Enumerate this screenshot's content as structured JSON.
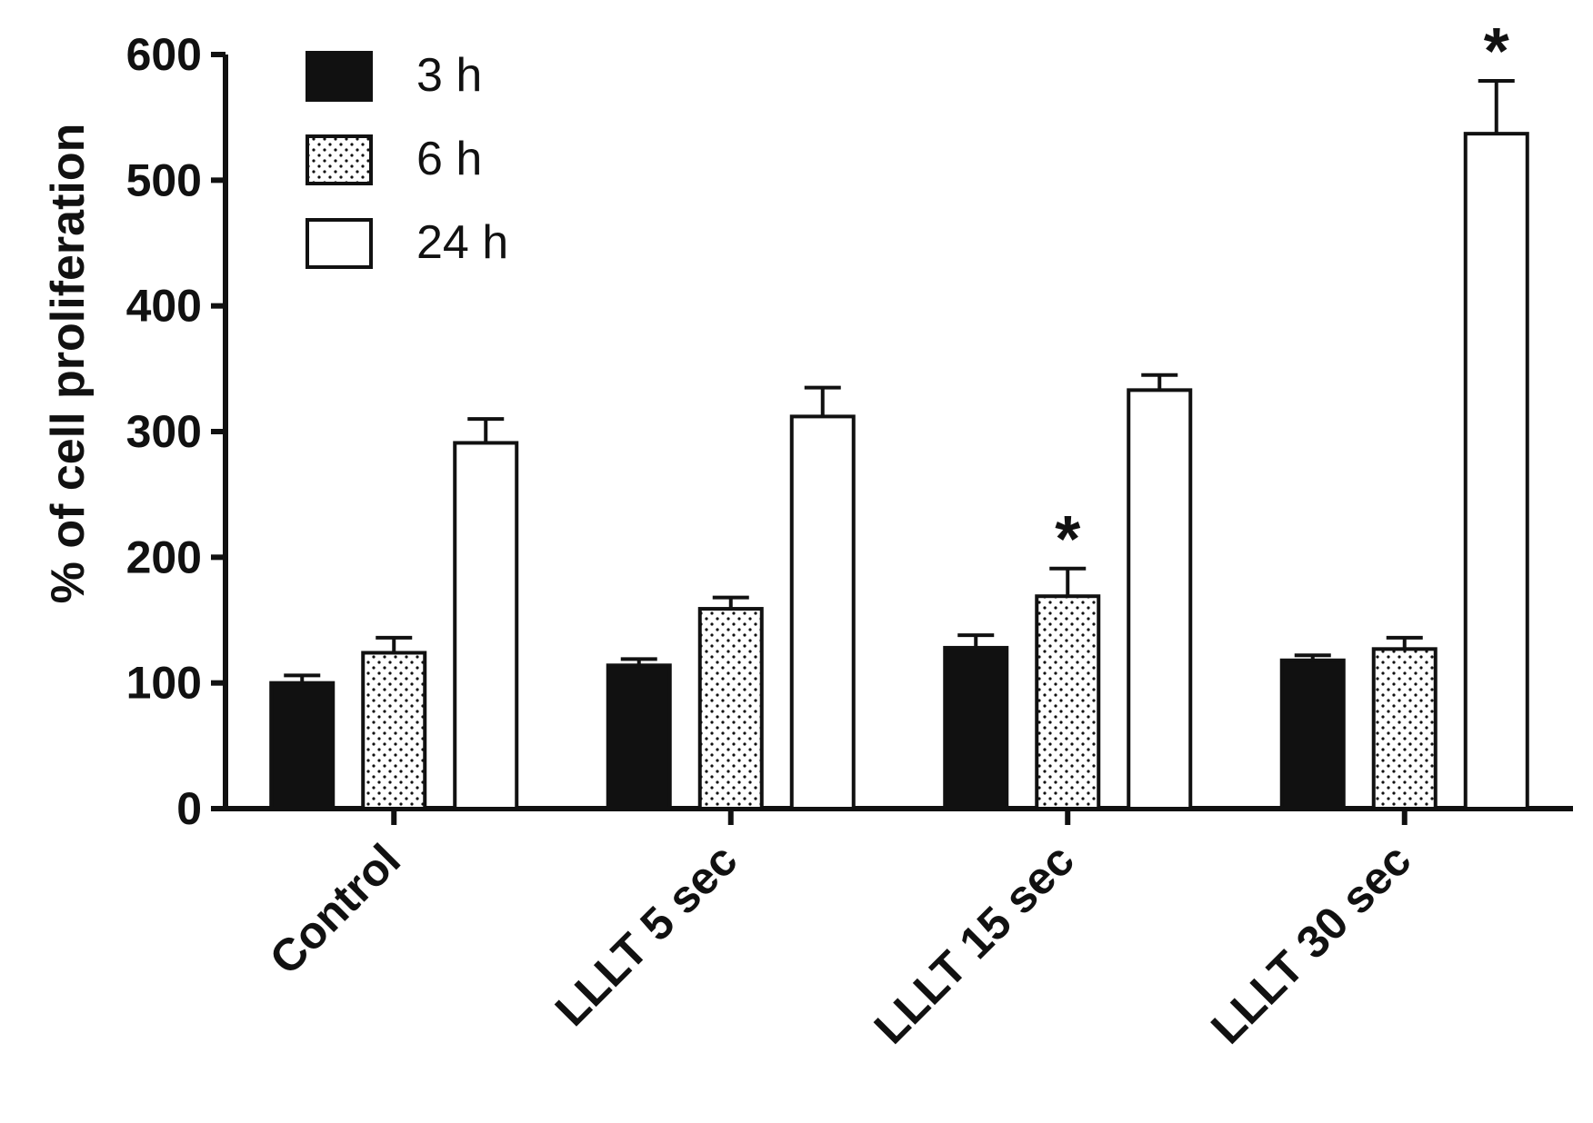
{
  "chart_data": {
    "type": "bar",
    "ylabel": "% of cell proliferation",
    "xlabel": "",
    "ylim": [
      0,
      600
    ],
    "yticks": [
      0,
      100,
      200,
      300,
      400,
      500,
      600
    ],
    "categories": [
      "Control",
      "LLLT 5 sec",
      "LLLT 15 sec",
      "LLLT 30 sec"
    ],
    "series": [
      {
        "name": "3 h",
        "fill": "solid",
        "values": [
          100,
          114,
          128,
          118
        ],
        "errors": [
          6,
          5,
          10,
          4
        ],
        "significant": [
          false,
          false,
          false,
          false
        ]
      },
      {
        "name": "6 h",
        "fill": "dotted",
        "values": [
          124,
          159,
          169,
          127
        ],
        "errors": [
          12,
          9,
          22,
          9
        ],
        "significant": [
          false,
          false,
          true,
          false
        ]
      },
      {
        "name": "24 h",
        "fill": "open",
        "values": [
          291,
          312,
          333,
          537
        ],
        "errors": [
          19,
          23,
          12,
          42
        ],
        "significant": [
          false,
          false,
          false,
          true
        ]
      }
    ],
    "significance_marker": "*",
    "legend": "top-left",
    "grid": false,
    "colors": {
      "bar_solid": "#111111",
      "bar_open": "#ffffff",
      "stroke": "#111111"
    }
  }
}
